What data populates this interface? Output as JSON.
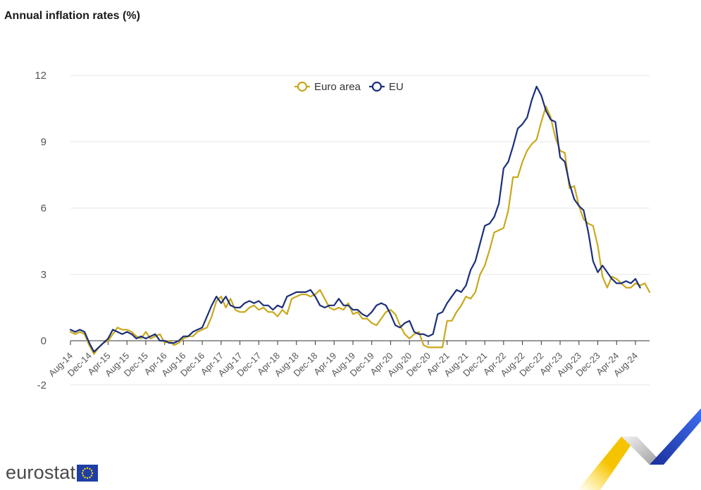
{
  "title": "Annual inflation rates (%)",
  "brand": {
    "name": "eurostat",
    "flag_icon": "eu-flag-icon"
  },
  "colors": {
    "euro_area": "#c9a81b",
    "eu": "#1b2f7a",
    "grid": "#e6e6e6",
    "axis_text": "#555555"
  },
  "chart_data": {
    "type": "line",
    "title": "Annual inflation rates (%)",
    "xlabel": "",
    "ylabel": "",
    "ylim": [
      -2,
      12
    ],
    "yticks": [
      -2,
      0,
      3,
      6,
      9,
      12
    ],
    "grid": true,
    "legend": "top-center",
    "x_start": "Aug-14",
    "x_end": "Aug-24",
    "xtick_labels": [
      "Aug-14",
      "Dec-14",
      "Apr-15",
      "Aug-15",
      "Dec-15",
      "Apr-16",
      "Aug-16",
      "Dec-16",
      "Apr-17",
      "Aug-17",
      "Dec-17",
      "Apr-18",
      "Aug-18",
      "Dec-18",
      "Apr-19",
      "Aug-19",
      "Dec-19",
      "Apr-20",
      "Aug-20",
      "Dec-20",
      "Apr-21",
      "Aug-21",
      "Dec-21",
      "Apr-22",
      "Aug-22",
      "Dec-22",
      "Apr-23",
      "Aug-23",
      "Dec-23",
      "Apr-24",
      "Aug-24"
    ],
    "series": [
      {
        "name": "Euro area",
        "color": "#c9a81b",
        "values": [
          0.4,
          0.3,
          0.4,
          0.3,
          -0.2,
          -0.6,
          -0.3,
          -0.1,
          0.0,
          0.3,
          0.6,
          0.5,
          0.5,
          0.4,
          0.2,
          0.1,
          0.4,
          0.1,
          0.2,
          0.3,
          -0.1,
          0.0,
          -0.2,
          -0.1,
          0.1,
          0.2,
          0.2,
          0.4,
          0.5,
          0.6,
          1.1,
          1.8,
          2.0,
          1.5,
          1.9,
          1.4,
          1.3,
          1.3,
          1.5,
          1.6,
          1.4,
          1.5,
          1.3,
          1.3,
          1.1,
          1.4,
          1.2,
          1.9,
          2.0,
          2.1,
          2.1,
          2.0,
          2.1,
          2.3,
          1.9,
          1.5,
          1.4,
          1.5,
          1.4,
          1.7,
          1.2,
          1.3,
          1.0,
          1.0,
          0.8,
          0.7,
          1.0,
          1.3,
          1.4,
          1.2,
          0.7,
          0.3,
          0.1,
          0.3,
          0.4,
          -0.2,
          -0.3,
          -0.3,
          -0.3,
          -0.3,
          0.9,
          0.9,
          1.3,
          1.6,
          2.0,
          1.9,
          2.2,
          3.0,
          3.4,
          4.1,
          4.9,
          5.0,
          5.1,
          5.9,
          7.4,
          7.4,
          8.1,
          8.6,
          8.9,
          9.1,
          9.9,
          10.6,
          10.1,
          9.2,
          8.6,
          8.5,
          6.9,
          7.0,
          6.1,
          5.5,
          5.3,
          5.2,
          4.3,
          2.9,
          2.4,
          2.9,
          2.8,
          2.6,
          2.4,
          2.4,
          2.6,
          2.5,
          2.6,
          2.2
        ]
      },
      {
        "name": "EU",
        "color": "#1b2f7a",
        "values": [
          0.5,
          0.4,
          0.5,
          0.4,
          -0.1,
          -0.5,
          -0.3,
          -0.1,
          0.1,
          0.5,
          0.4,
          0.3,
          0.4,
          0.3,
          0.1,
          0.2,
          0.1,
          0.2,
          0.3,
          0.0,
          0.0,
          -0.1,
          -0.1,
          0.0,
          0.2,
          0.2,
          0.4,
          0.5,
          0.6,
          1.1,
          1.6,
          2.0,
          1.7,
          2.0,
          1.6,
          1.5,
          1.5,
          1.7,
          1.8,
          1.7,
          1.8,
          1.6,
          1.6,
          1.4,
          1.6,
          1.5,
          2.0,
          2.1,
          2.2,
          2.2,
          2.2,
          2.3,
          2.0,
          1.6,
          1.5,
          1.6,
          1.6,
          1.9,
          1.6,
          1.6,
          1.4,
          1.4,
          1.2,
          1.1,
          1.3,
          1.6,
          1.7,
          1.6,
          1.2,
          0.7,
          0.6,
          0.8,
          0.9,
          0.4,
          0.3,
          0.3,
          0.2,
          0.3,
          1.2,
          1.3,
          1.7,
          2.0,
          2.3,
          2.2,
          2.5,
          3.2,
          3.6,
          4.4,
          5.2,
          5.3,
          5.6,
          6.2,
          7.8,
          8.1,
          8.8,
          9.6,
          9.8,
          10.1,
          10.9,
          11.5,
          11.1,
          10.4,
          10.0,
          9.9,
          8.3,
          8.1,
          7.1,
          6.4,
          6.1,
          5.9,
          4.9,
          3.6,
          3.1,
          3.4,
          3.1,
          2.8,
          2.6,
          2.6,
          2.7,
          2.6,
          2.8,
          2.4
        ]
      }
    ]
  }
}
